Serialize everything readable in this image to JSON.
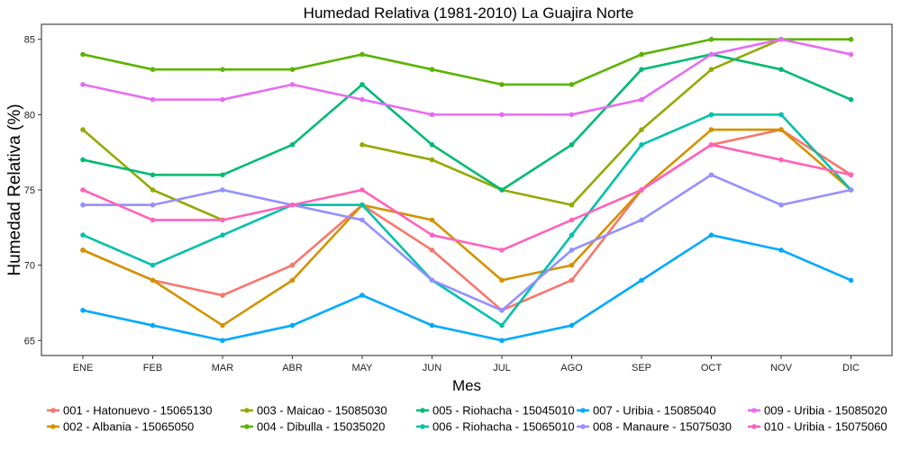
{
  "chart_data": {
    "type": "line",
    "title": "Humedad Relativa (1981-2010)  La Guajira Norte",
    "xlabel": "Mes",
    "ylabel": "Humedad Relativa  (%)",
    "categories": [
      "ENE",
      "FEB",
      "MAR",
      "ABR",
      "MAY",
      "JUN",
      "JUL",
      "AGO",
      "SEP",
      "OCT",
      "NOV",
      "DIC"
    ],
    "ylim": [
      64,
      86
    ],
    "yticks": [
      65,
      70,
      75,
      80,
      85
    ],
    "grid": false,
    "legend_position": "bottom",
    "series": [
      {
        "name": "001 - Hatonuevo - 15065130",
        "color": "#F8766D",
        "values": [
          71,
          69,
          68,
          70,
          74,
          71,
          67,
          69,
          75,
          78,
          79,
          76
        ]
      },
      {
        "name": "002 - Albania - 15065050",
        "color": "#D39200",
        "values": [
          71,
          69,
          66,
          69,
          74,
          73,
          69,
          70,
          75,
          79,
          79,
          75
        ]
      },
      {
        "name": "003 - Maicao - 15085030",
        "color": "#93AA00",
        "values": [
          79,
          75,
          73,
          null,
          78,
          77,
          75,
          74,
          79,
          83,
          85,
          null
        ]
      },
      {
        "name": "004 - Dibulla - 15035020",
        "color": "#5BB300",
        "values": [
          84,
          83,
          83,
          83,
          84,
          83,
          82,
          82,
          84,
          85,
          85,
          85
        ]
      },
      {
        "name": "005 - Riohacha - 15045010",
        "color": "#00BA73",
        "values": [
          77,
          76,
          76,
          78,
          82,
          78,
          75,
          78,
          83,
          84,
          83,
          81
        ]
      },
      {
        "name": "006 - Riohacha - 15065010",
        "color": "#00C1AB",
        "values": [
          72,
          70,
          72,
          74,
          74,
          69,
          66,
          72,
          78,
          80,
          80,
          75
        ]
      },
      {
        "name": "007 - Uribia - 15085040",
        "color": "#00A9FF",
        "values": [
          67,
          66,
          65,
          66,
          68,
          66,
          65,
          66,
          69,
          72,
          71,
          69
        ]
      },
      {
        "name": "008 - Manaure - 15075030",
        "color": "#9590FF",
        "values": [
          74,
          74,
          75,
          74,
          73,
          69,
          67,
          71,
          73,
          76,
          74,
          75
        ]
      },
      {
        "name": "009 - Uribia - 15085020",
        "color": "#E76BF3",
        "values": [
          82,
          81,
          81,
          82,
          81,
          80,
          80,
          80,
          81,
          84,
          85,
          84
        ]
      },
      {
        "name": "010 - Uribia - 15075060",
        "color": "#FF62BC",
        "values": [
          75,
          73,
          73,
          74,
          75,
          72,
          71,
          73,
          75,
          78,
          77,
          76
        ]
      }
    ]
  }
}
